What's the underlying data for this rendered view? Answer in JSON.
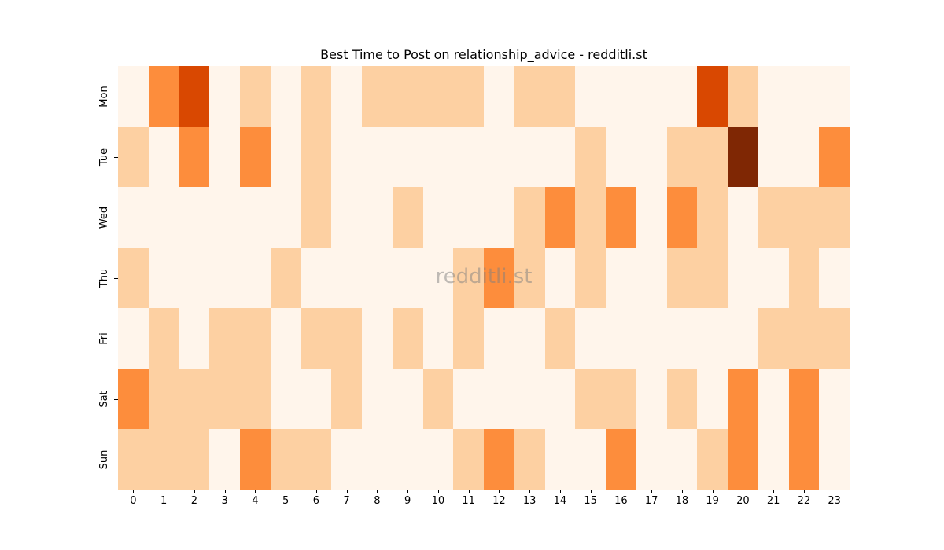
{
  "chart_data": {
    "type": "heatmap",
    "title": "Best Time to Post on relationship_advice - redditli.st",
    "xlabel": "",
    "ylabel": "",
    "x": [
      "0",
      "1",
      "2",
      "3",
      "4",
      "5",
      "6",
      "7",
      "8",
      "9",
      "10",
      "11",
      "12",
      "13",
      "14",
      "15",
      "16",
      "17",
      "18",
      "19",
      "20",
      "21",
      "22",
      "23"
    ],
    "y": [
      "Mon",
      "Tue",
      "Wed",
      "Thu",
      "Fri",
      "Sat",
      "Sun"
    ],
    "colormap": "Oranges",
    "level_colors": [
      "#fff5eb",
      "#fdd0a2",
      "#fd8d3c",
      "#d94801",
      "#7f2704"
    ],
    "values": [
      [
        0,
        2,
        3,
        0,
        1,
        0,
        1,
        0,
        1,
        1,
        1,
        1,
        0,
        1,
        1,
        0,
        0,
        0,
        0,
        3,
        1,
        0,
        0,
        0
      ],
      [
        1,
        0,
        2,
        0,
        2,
        0,
        1,
        0,
        0,
        0,
        0,
        0,
        0,
        0,
        0,
        1,
        0,
        0,
        1,
        1,
        4,
        0,
        0,
        2
      ],
      [
        0,
        0,
        0,
        0,
        0,
        0,
        1,
        0,
        0,
        1,
        0,
        0,
        0,
        1,
        2,
        1,
        2,
        0,
        2,
        1,
        0,
        1,
        1,
        1
      ],
      [
        1,
        0,
        0,
        0,
        0,
        1,
        0,
        0,
        0,
        0,
        0,
        1,
        2,
        1,
        0,
        1,
        0,
        0,
        1,
        1,
        0,
        0,
        1,
        0
      ],
      [
        0,
        1,
        0,
        1,
        1,
        0,
        1,
        1,
        0,
        1,
        0,
        1,
        0,
        0,
        1,
        0,
        0,
        0,
        0,
        0,
        0,
        1,
        1,
        1
      ],
      [
        2,
        1,
        1,
        1,
        1,
        0,
        0,
        1,
        0,
        0,
        1,
        0,
        0,
        0,
        0,
        1,
        1,
        0,
        1,
        0,
        2,
        0,
        2,
        0
      ],
      [
        1,
        1,
        1,
        0,
        2,
        1,
        1,
        0,
        0,
        0,
        0,
        1,
        2,
        1,
        0,
        0,
        2,
        0,
        0,
        1,
        2,
        0,
        2,
        0
      ]
    ],
    "grid": false,
    "colorbar": false
  },
  "watermark": "redditli.st"
}
